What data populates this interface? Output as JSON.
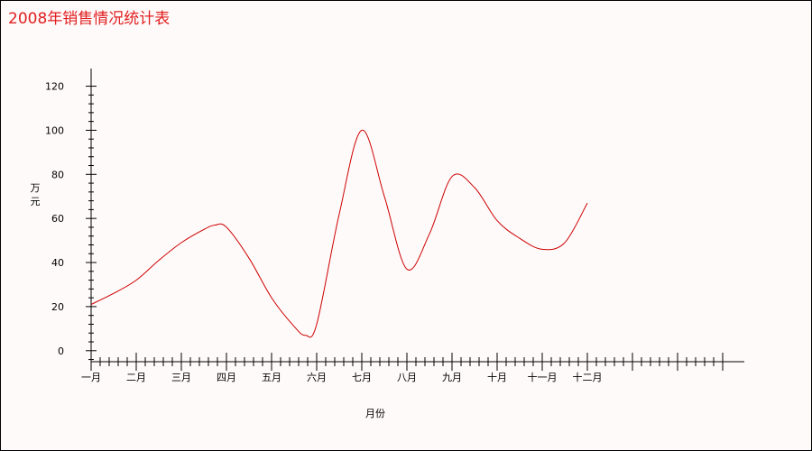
{
  "chart_data": {
    "type": "line",
    "title": "2008年销售情况统计表",
    "xlabel": "月份",
    "ylabel": "万元",
    "categories": [
      "一月",
      "二月",
      "三月",
      "四月",
      "五月",
      "六月",
      "七月",
      "八月",
      "九月",
      "十月",
      "十一月",
      "十二月"
    ],
    "x_slots": 14,
    "yticks": [
      0,
      20,
      40,
      60,
      80,
      100,
      120
    ],
    "ylim": [
      -5,
      128
    ],
    "grid": false,
    "legend": "none",
    "line_color": "#cc0000",
    "title_color": "#e02020",
    "series": [
      {
        "x": [
          0,
          0.5,
          1,
          1.5,
          2,
          2.5,
          2.75,
          3,
          3.5,
          4,
          4.5,
          4.75,
          5,
          5.5,
          6,
          6.5,
          7,
          7.5,
          8,
          8.5,
          9,
          9.5,
          10,
          10.5,
          11
        ],
        "values": [
          21,
          26,
          32,
          41,
          49,
          55,
          57,
          56,
          42,
          24,
          11,
          7,
          12,
          62,
          100,
          70,
          37,
          53,
          79,
          74,
          59,
          51,
          46,
          49,
          67
        ]
      }
    ]
  }
}
